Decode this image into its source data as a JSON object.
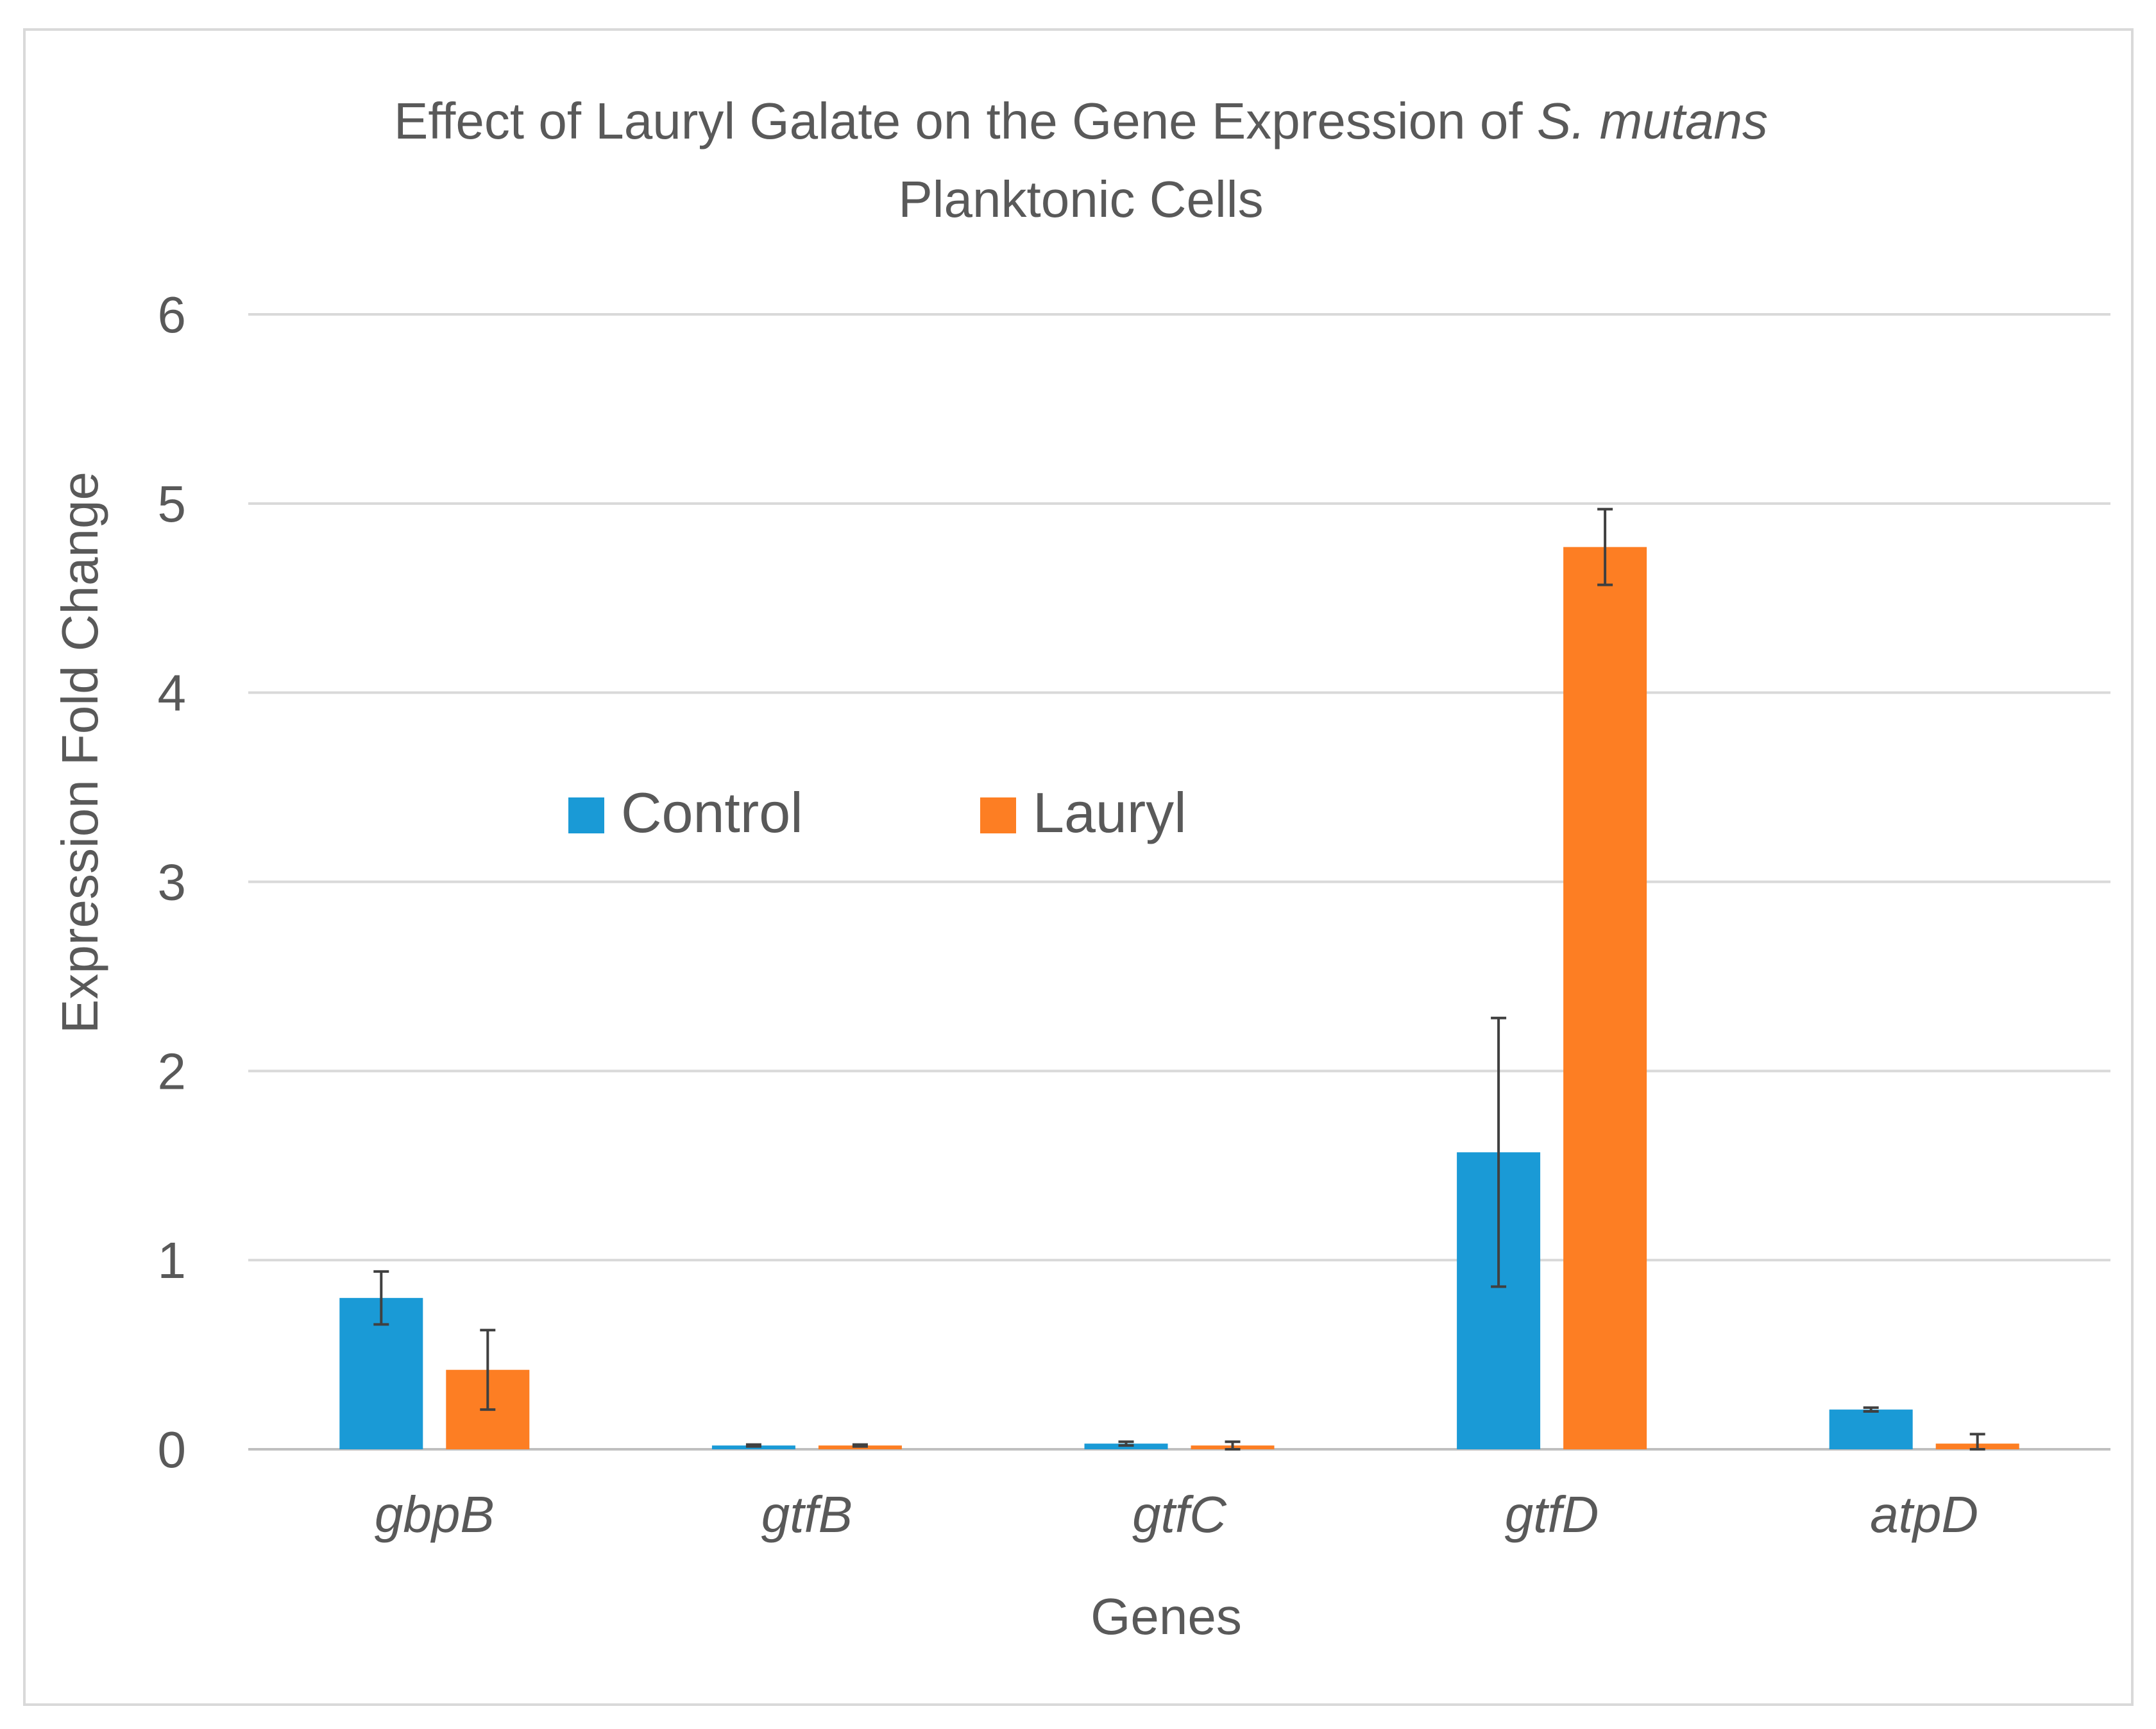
{
  "chart_data": {
    "type": "bar",
    "title_main": "Effect of Lauryl Galate on the Gene Expression of ",
    "title_italic": "S. mutans",
    "title_line2": "Planktonic Cells",
    "xlabel": "Genes",
    "ylabel": "Expression Fold Change",
    "ylim": [
      0,
      6
    ],
    "yticks": [
      "0",
      "1",
      "2",
      "3",
      "4",
      "5",
      "6"
    ],
    "grid": true,
    "legend_position": "center-left",
    "categories": [
      "gbpB",
      "gtfB",
      "gtfC",
      "gtfD",
      "atpD"
    ],
    "series": [
      {
        "name": "Control",
        "color": "#1a9ad6",
        "values": [
          0.8,
          0.02,
          0.03,
          1.57,
          0.21
        ],
        "errors": [
          0.14,
          0.005,
          0.01,
          0.71,
          0.01
        ]
      },
      {
        "name": "Lauryl",
        "color": "#fd7e23",
        "values": [
          0.42,
          0.02,
          0.02,
          4.77,
          0.03
        ],
        "errors": [
          0.21,
          0.005,
          0.02,
          0.2,
          0.05
        ]
      }
    ]
  }
}
